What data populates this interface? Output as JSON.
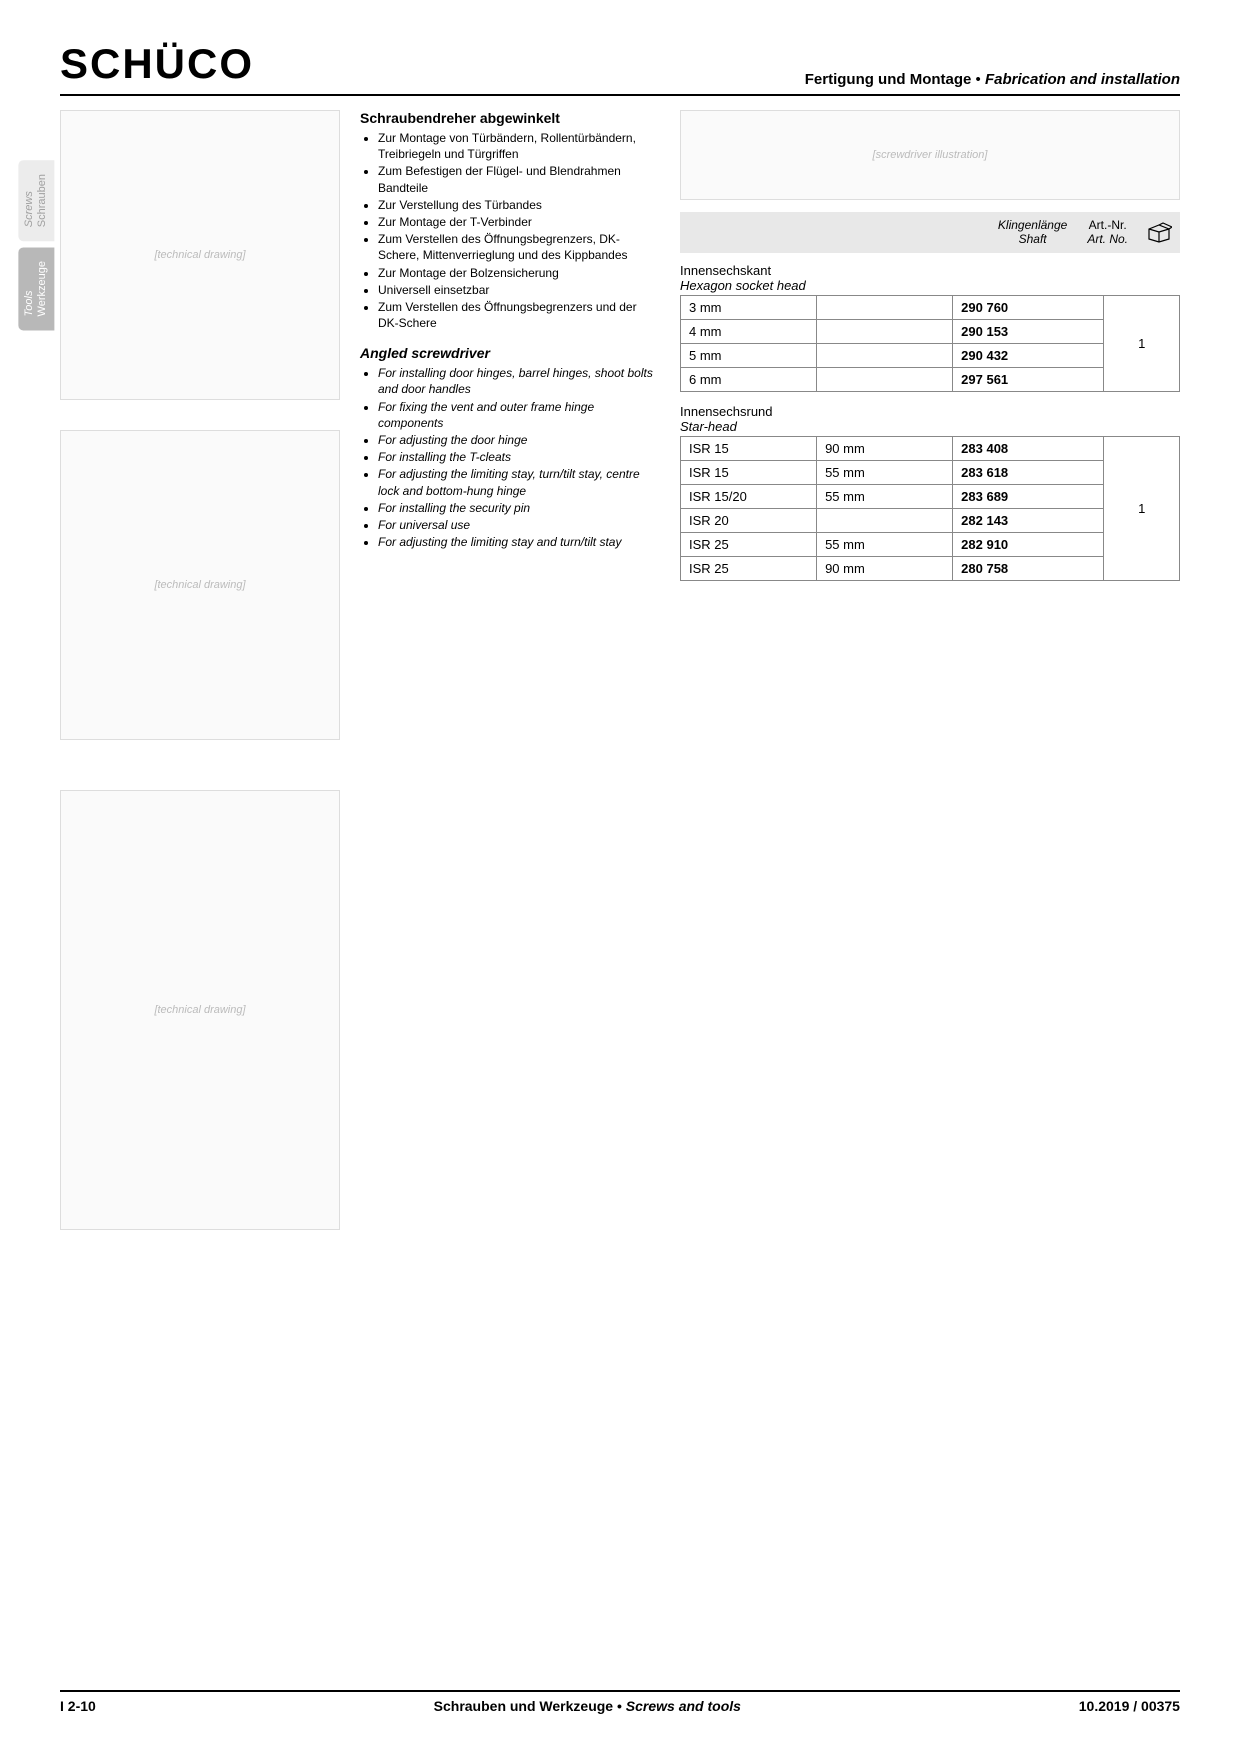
{
  "logo_text": "SCHÜCO",
  "header_right_de": "Fertigung und Montage",
  "header_right_sep": " • ",
  "header_right_en": "Fabrication and installation",
  "sidetabs": [
    {
      "en": "Screws",
      "de": "Schrauben",
      "active": false
    },
    {
      "en": "Tools",
      "de": "Werkzeuge",
      "active": true
    }
  ],
  "title_de": "Schraubendreher abgewinkelt",
  "bullets_de": [
    "Zur Montage von Türbändern, Rollentürbändern, Treibriegeln und Türgriffen",
    "Zum Befestigen der Flügel- und Blendrahmen Bandteile",
    "Zur Verstellung des Türbandes",
    "Zur Montage der T-Verbinder",
    "Zum Verstellen des Öffnungsbegrenzers, DK-Schere, Mittenverrieglung und des Kippbandes",
    "Zur Montage der Bolzensicherung",
    "Universell einsetzbar",
    "Zum Verstellen des Öffnungsbegrenzers und der DK-Schere"
  ],
  "title_en": "Angled screwdriver",
  "bullets_en": [
    "For installing door hinges, barrel hinges, shoot bolts and door handles",
    "For fixing the vent and outer frame hinge components",
    "For adjusting the door hinge",
    "For installing the T-cleats",
    "For adjusting the limiting stay, turn/tilt stay, centre lock and bottom-hung hinge",
    "For installing the security pin",
    "For universal use",
    "For adjusting the limiting stay and turn/tilt stay"
  ],
  "col_headers": {
    "shaft_de": "Klingenlänge",
    "shaft_en": "Shaft",
    "art_de": "Art.-Nr.",
    "art_en": "Art. No."
  },
  "section1": {
    "heading_de": "Innensechskant",
    "heading_en": "Hexagon socket head",
    "rows": [
      {
        "size": "3 mm",
        "shaft": "",
        "art": "290 760"
      },
      {
        "size": "4 mm",
        "shaft": "",
        "art": "290 153"
      },
      {
        "size": "5 mm",
        "shaft": "",
        "art": "290 432"
      },
      {
        "size": "6 mm",
        "shaft": "",
        "art": "297 561"
      }
    ],
    "qty": "1"
  },
  "section2": {
    "heading_de": "Innensechsrund",
    "heading_en": "Star-head",
    "rows": [
      {
        "size": "ISR 15",
        "shaft": "90 mm",
        "art": "283 408"
      },
      {
        "size": "ISR 15",
        "shaft": "55 mm",
        "art": "283 618"
      },
      {
        "size": "ISR 15/20",
        "shaft": "55 mm",
        "art": "283 689"
      },
      {
        "size": "ISR 20",
        "shaft": "",
        "art": "282 143"
      },
      {
        "size": "ISR 25",
        "shaft": "55 mm",
        "art": "282 910"
      },
      {
        "size": "ISR 25",
        "shaft": "90 mm",
        "art": "280 758"
      }
    ],
    "qty": "1"
  },
  "footer": {
    "page": "I 2-10",
    "center_de": "Schrauben und Werkzeuge",
    "center_sep": " • ",
    "center_en": "Screws and tools",
    "right": "10.2019 / 00375"
  },
  "colors": {
    "border": "#000000",
    "tab_inactive_bg": "#ececec",
    "tab_inactive_text": "#a0a0a0",
    "tab_active_bg": "#b8b8b8",
    "header_row_bg": "#e8e8e8"
  },
  "img_placeholders": {
    "diag1": "[technical drawing]",
    "diag2": "[technical drawing]",
    "diag3": "[technical drawing]",
    "screwdriver": "[screwdriver illustration]"
  }
}
